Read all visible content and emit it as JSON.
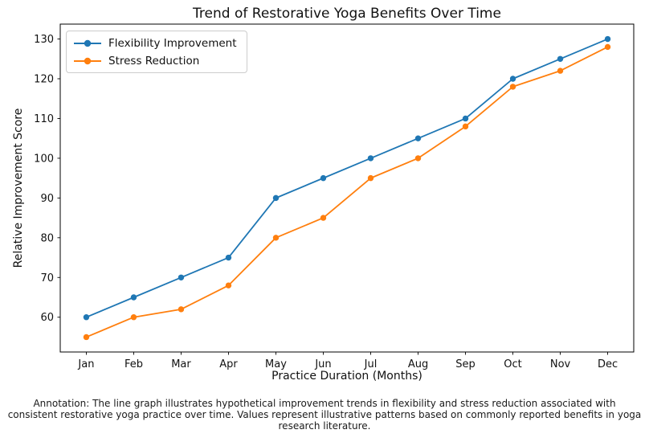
{
  "figure": {
    "annotation": "Annotation: The line graph illustrates hypothetical improvement trends in flexibility and stress reduction associated with consistent restorative yoga practice over time. Values represent illustrative patterns based on commonly reported benefits in yoga research literature."
  },
  "chart_data": {
    "type": "line",
    "title": "Trend of Restorative Yoga Benefits Over Time",
    "xlabel": "Practice Duration (Months)",
    "ylabel": "Relative Improvement Score",
    "categories": [
      "Jan",
      "Feb",
      "Mar",
      "Apr",
      "May",
      "Jun",
      "Jul",
      "Aug",
      "Sep",
      "Oct",
      "Nov",
      "Dec"
    ],
    "series": [
      {
        "name": "Flexibility Improvement",
        "color": "#1f77b4",
        "marker": "o",
        "values": [
          60,
          65,
          70,
          75,
          90,
          95,
          100,
          105,
          110,
          120,
          125,
          130
        ]
      },
      {
        "name": "Stress Reduction",
        "color": "#ff7f0e",
        "marker": "o",
        "values": [
          55,
          60,
          62,
          68,
          80,
          85,
          95,
          100,
          108,
          118,
          122,
          128
        ]
      }
    ],
    "yticks": [
      60,
      70,
      80,
      90,
      100,
      110,
      120,
      130
    ],
    "ylim": [
      51.25,
      133.75
    ],
    "grid": false,
    "legend_position": "upper left"
  }
}
